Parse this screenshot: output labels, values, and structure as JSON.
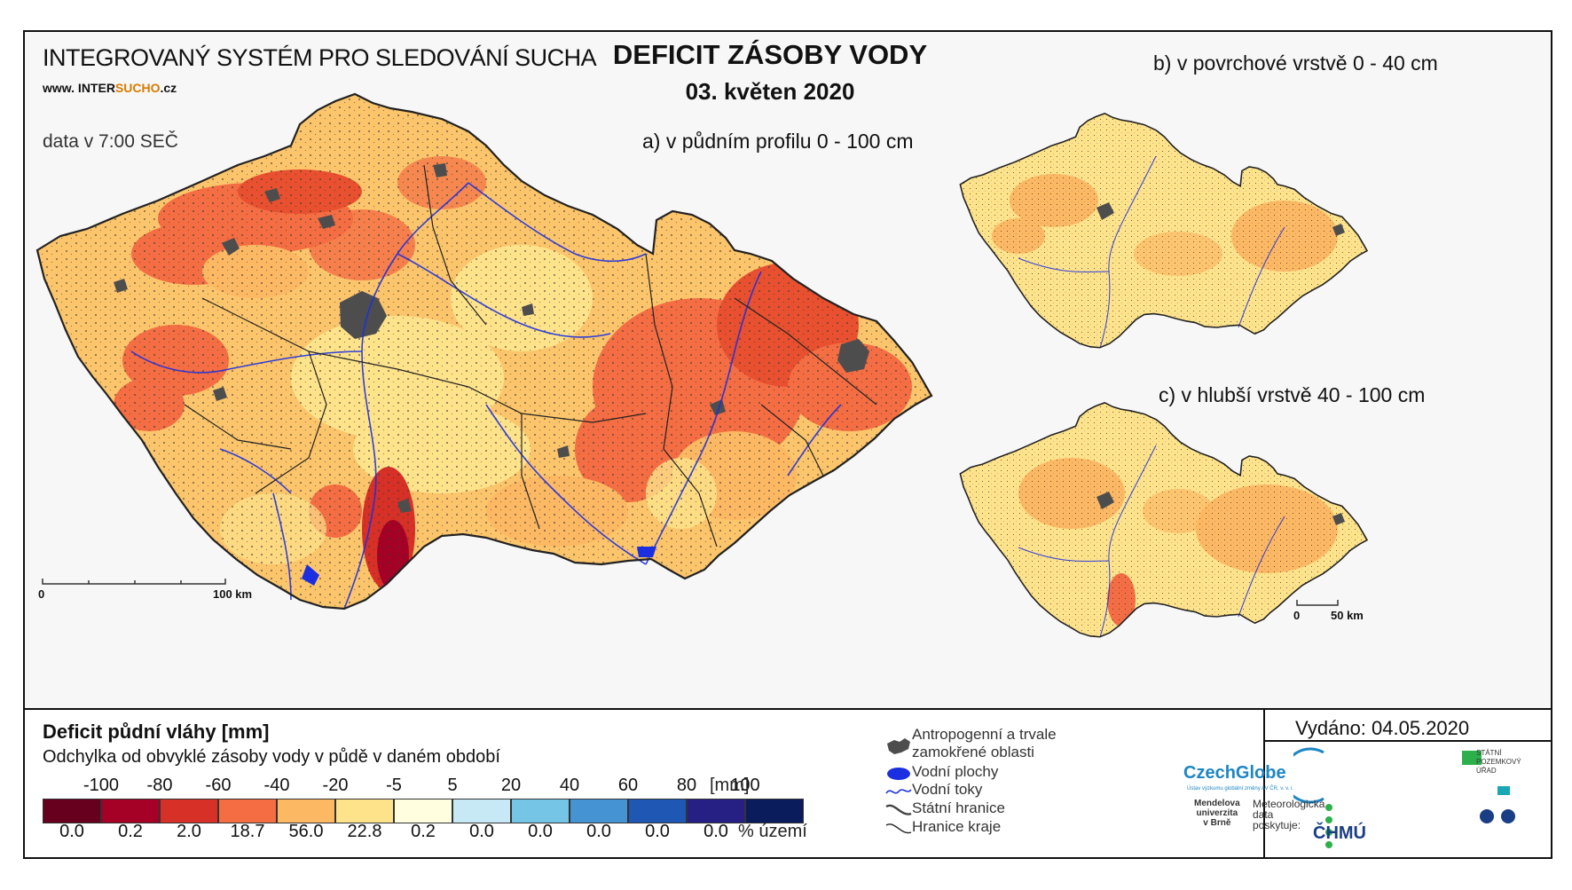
{
  "header": {
    "system_title": "INTEGROVANÝ SYSTÉM PRO SLEDOVÁNÍ SUCHA",
    "website_prefix": "www. INTER",
    "website_accent": "SUCHO",
    "website_suffix": ".cz",
    "data_time": "data v 7:00 SEČ",
    "main_title": "DEFICIT ZÁSOBY VODY",
    "date": "03. květen 2020"
  },
  "maps": {
    "a_label": "a) v půdním profilu 0 - 100 cm",
    "b_label": "b) v povrchové vrstvě 0 - 40 cm",
    "c_label": "c) v hlubší vrstvě 40 - 100 cm",
    "scale_main_start": "0",
    "scale_main_end": "100 km",
    "scale_small_start": "0",
    "scale_small_end": "50 km"
  },
  "legend": {
    "title": "Deficit půdní vláhy  [mm]",
    "subtitle": "Odchylka od obvyklé zásoby vody v půdě v daném období",
    "unit_label": "[mm]",
    "percent_label": "% území",
    "ticks": [
      "-100",
      "-80",
      "-60",
      "-40",
      "-20",
      "-5",
      "5",
      "20",
      "40",
      "60",
      "80",
      "100"
    ],
    "classes": [
      {
        "color": "#67001f",
        "percent": "0.0"
      },
      {
        "color": "#a50026",
        "percent": "0.2"
      },
      {
        "color": "#d73027",
        "percent": "2.0"
      },
      {
        "color": "#f46d43",
        "percent": "18.7"
      },
      {
        "color": "#fdb863",
        "percent": "56.0"
      },
      {
        "color": "#fee38b",
        "percent": "22.8"
      },
      {
        "color": "#ffffe0",
        "percent": "0.2"
      },
      {
        "color": "#c6e9f5",
        "percent": "0.0"
      },
      {
        "color": "#74c5e6",
        "percent": "0.0"
      },
      {
        "color": "#4593d3",
        "percent": "0.0"
      },
      {
        "color": "#1f57b5",
        "percent": "0.0"
      },
      {
        "color": "#272084",
        "percent": "0.0"
      },
      {
        "color": "#0a1c5c",
        "percent": ""
      }
    ]
  },
  "map_key": {
    "anthropogenic": "Antropogenní a trvale",
    "anthropogenic_2": "zamokřené oblasti",
    "water_bodies": "Vodní plochy",
    "streams": "Vodní toky",
    "state_border": "Státní hranice",
    "region_border": "Hranice kraje"
  },
  "footer": {
    "issued": "Vydáno: 04.05.2020",
    "czechglobe": "CzechGlobe",
    "czechglobe_sub": "Ústav výzkumu globální změny AV ČR, v. v. i.",
    "spu_1": "STÁTNÍ",
    "spu_2": "POZEMKOVÝ",
    "spu_3": "ÚŘAD",
    "mendel_1": "Mendelova",
    "mendel_2": "univerzita",
    "mendel_3": "v Brně",
    "meteo_1": "Meteorologická",
    "meteo_2": "data",
    "meteo_3": "poskytuje:",
    "chmu": "ČHMÚ"
  },
  "colors": {
    "water": "#1b2fe0",
    "urban": "#4d4d4d",
    "border": "#222222"
  }
}
